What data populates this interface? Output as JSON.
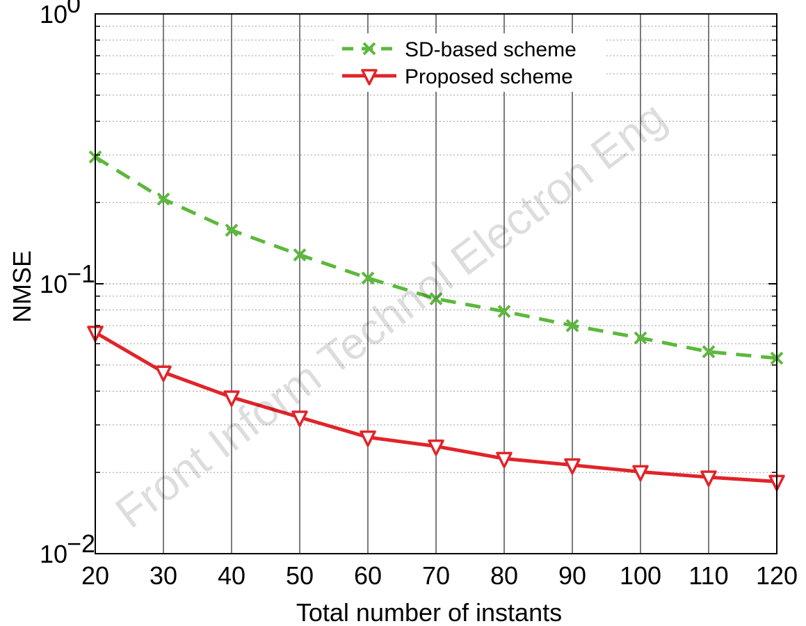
{
  "chart_data": {
    "type": "line",
    "title": "",
    "xlabel": "Total number of instants",
    "ylabel": "NMSE",
    "xlim": [
      20,
      120
    ],
    "ylim": [
      0.01,
      1
    ],
    "yscale": "log",
    "grid": true,
    "legend_position": "top-center",
    "x": [
      20,
      30,
      40,
      50,
      60,
      70,
      80,
      90,
      100,
      110,
      120
    ],
    "x_tick_labels": [
      "20",
      "30",
      "40",
      "50",
      "60",
      "70",
      "80",
      "90",
      "100",
      "110",
      "120"
    ],
    "y_tick_labels": [
      {
        "value": 1,
        "base": "10",
        "exp": "0"
      },
      {
        "value": 0.1,
        "base": "10",
        "exp": "−1"
      },
      {
        "value": 0.01,
        "base": "10",
        "exp": "−2"
      }
    ],
    "series": [
      {
        "name": "SD-based scheme",
        "color": "#5cb83c",
        "line_style": "dashed",
        "marker": "x",
        "values": [
          0.295,
          0.206,
          0.158,
          0.128,
          0.105,
          0.088,
          0.079,
          0.07,
          0.063,
          0.056,
          0.053
        ]
      },
      {
        "name": "Proposed scheme",
        "color": "#e0242a",
        "line_style": "solid",
        "marker": "triangle-down",
        "values": [
          0.066,
          0.047,
          0.038,
          0.032,
          0.027,
          0.025,
          0.0225,
          0.0213,
          0.0201,
          0.0192,
          0.0185
        ]
      }
    ]
  },
  "watermark": "Front Inform Technol Electron Eng"
}
